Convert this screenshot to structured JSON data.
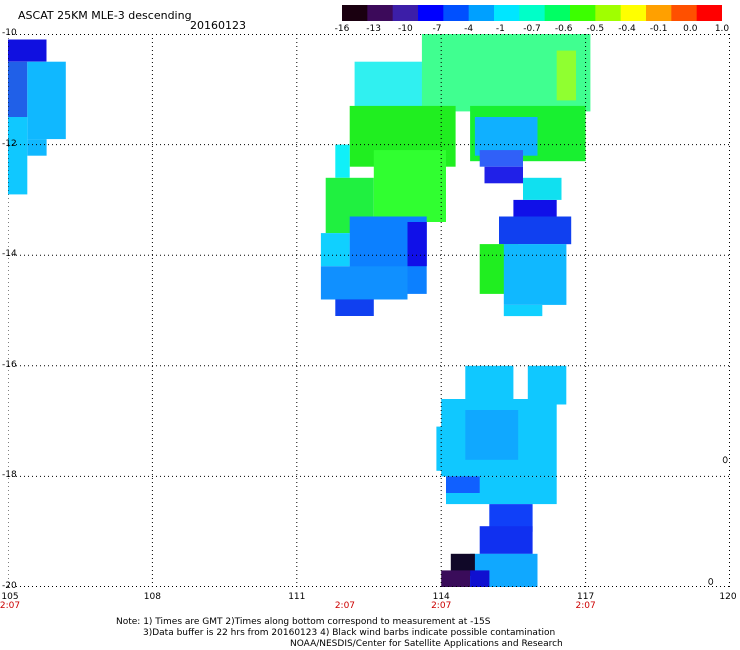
{
  "header": {
    "title": "ASCAT 25KM MLE-3 descending",
    "date": "20160123"
  },
  "colorbar": {
    "labels": [
      "-16",
      "-13",
      "-10",
      "-7",
      "-4",
      "-1",
      "-0.7",
      "-0.6",
      "-0.5",
      "-0.4",
      "-0.1",
      "0.0",
      "1.0"
    ],
    "colors": [
      "#1a0010",
      "#3c0a5a",
      "#3c1ea8",
      "#0000ff",
      "#0050ff",
      "#00a0ff",
      "#00e6ff",
      "#00ffc8",
      "#00ff64",
      "#3cff00",
      "#a0ff00",
      "#ffff00",
      "#ffa000",
      "#ff5000",
      "#ff0000"
    ]
  },
  "axes": {
    "lat_labels": [
      "-10",
      "-12",
      "-14",
      "-16",
      "-18",
      "-20"
    ],
    "lon_labels": [
      "105",
      "108",
      "111",
      "114",
      "117",
      "120"
    ],
    "time_labels": [
      "2:07",
      "2:07",
      "2:07",
      "2:07"
    ],
    "time_label_lons": [
      105,
      112,
      114,
      117
    ],
    "lat_range": [
      -20,
      -10
    ],
    "lon_range": [
      105,
      120
    ],
    "grid": true
  },
  "map_data": {
    "cells": [
      {
        "lon": 105.0,
        "lat": -10.1,
        "w": 0.8,
        "h": 0.4,
        "color": "#1010e0"
      },
      {
        "lon": 105.0,
        "lat": -10.5,
        "w": 0.4,
        "h": 1.0,
        "color": "#2060e8"
      },
      {
        "lon": 105.4,
        "lat": -10.5,
        "w": 0.8,
        "h": 1.4,
        "color": "#10b8ff"
      },
      {
        "lon": 105.0,
        "lat": -11.5,
        "w": 0.4,
        "h": 1.4,
        "color": "#10c8ff"
      },
      {
        "lon": 105.4,
        "lat": -11.9,
        "w": 0.4,
        "h": 0.3,
        "color": "#10b8ff"
      },
      {
        "lon": 112.2,
        "lat": -10.5,
        "w": 1.4,
        "h": 0.9,
        "color": "#30f0f0"
      },
      {
        "lon": 113.6,
        "lat": -10.0,
        "w": 3.5,
        "h": 1.4,
        "color": "#40ff90"
      },
      {
        "lon": 116.4,
        "lat": -10.3,
        "w": 0.4,
        "h": 0.9,
        "color": "#90ff30"
      },
      {
        "lon": 112.1,
        "lat": -11.3,
        "w": 2.2,
        "h": 1.1,
        "color": "#20ee20"
      },
      {
        "lon": 114.6,
        "lat": -11.3,
        "w": 2.4,
        "h": 1.0,
        "color": "#18f030"
      },
      {
        "lon": 114.7,
        "lat": -11.5,
        "w": 1.3,
        "h": 0.7,
        "color": "#10b0ff"
      },
      {
        "lon": 114.8,
        "lat": -12.1,
        "w": 0.9,
        "h": 0.3,
        "color": "#3060f8"
      },
      {
        "lon": 114.9,
        "lat": -12.4,
        "w": 0.8,
        "h": 0.3,
        "color": "#2020e8"
      },
      {
        "lon": 111.8,
        "lat": -12.0,
        "w": 0.3,
        "h": 0.6,
        "color": "#10f0f8"
      },
      {
        "lon": 111.6,
        "lat": -12.6,
        "w": 1.0,
        "h": 1.0,
        "color": "#20f040"
      },
      {
        "lon": 112.6,
        "lat": -12.1,
        "w": 1.5,
        "h": 1.3,
        "color": "#30ff30"
      },
      {
        "lon": 111.5,
        "lat": -13.6,
        "w": 0.6,
        "h": 0.6,
        "color": "#10d0ff"
      },
      {
        "lon": 112.1,
        "lat": -13.3,
        "w": 1.6,
        "h": 1.4,
        "color": "#0c80ff"
      },
      {
        "lon": 113.3,
        "lat": -13.4,
        "w": 0.4,
        "h": 0.8,
        "color": "#1010e8"
      },
      {
        "lon": 111.5,
        "lat": -14.2,
        "w": 1.8,
        "h": 0.6,
        "color": "#1090ff"
      },
      {
        "lon": 111.8,
        "lat": -14.8,
        "w": 0.8,
        "h": 0.3,
        "color": "#1040f0"
      },
      {
        "lon": 115.5,
        "lat": -13.0,
        "w": 0.9,
        "h": 0.3,
        "color": "#1010e8"
      },
      {
        "lon": 115.2,
        "lat": -13.3,
        "w": 1.5,
        "h": 0.5,
        "color": "#1040f0"
      },
      {
        "lon": 114.8,
        "lat": -13.8,
        "w": 0.8,
        "h": 0.9,
        "color": "#20ee20"
      },
      {
        "lon": 115.3,
        "lat": -13.8,
        "w": 1.3,
        "h": 1.1,
        "color": "#10b8ff"
      },
      {
        "lon": 115.7,
        "lat": -12.6,
        "w": 0.8,
        "h": 0.4,
        "color": "#10e0f0"
      },
      {
        "lon": 115.3,
        "lat": -14.9,
        "w": 0.8,
        "h": 0.2,
        "color": "#10d0ff"
      },
      {
        "lon": 114.5,
        "lat": -16.0,
        "w": 1.0,
        "h": 0.6,
        "color": "#10c8ff"
      },
      {
        "lon": 115.8,
        "lat": -16.0,
        "w": 0.8,
        "h": 0.7,
        "color": "#10c8ff"
      },
      {
        "lon": 114.0,
        "lat": -16.6,
        "w": 2.4,
        "h": 1.4,
        "color": "#10c8ff"
      },
      {
        "lon": 114.5,
        "lat": -16.8,
        "w": 1.1,
        "h": 0.9,
        "color": "#10a8ff"
      },
      {
        "lon": 113.9,
        "lat": -17.1,
        "w": 0.2,
        "h": 0.8,
        "color": "#10c8ff"
      },
      {
        "lon": 114.1,
        "lat": -18.0,
        "w": 2.3,
        "h": 0.5,
        "color": "#10c8ff"
      },
      {
        "lon": 114.1,
        "lat": -18.0,
        "w": 0.7,
        "h": 0.3,
        "color": "#1060ff"
      },
      {
        "lon": 115.0,
        "lat": -18.5,
        "w": 0.9,
        "h": 0.5,
        "color": "#1040f8"
      },
      {
        "lon": 114.8,
        "lat": -18.9,
        "w": 1.1,
        "h": 0.5,
        "color": "#1030f0"
      },
      {
        "lon": 114.6,
        "lat": -19.4,
        "w": 1.4,
        "h": 0.6,
        "color": "#10a8ff"
      },
      {
        "lon": 114.2,
        "lat": -19.4,
        "w": 0.5,
        "h": 0.4,
        "color": "#100828"
      },
      {
        "lon": 114.0,
        "lat": -19.7,
        "w": 0.6,
        "h": 0.3,
        "color": "#3a0c5a"
      },
      {
        "lon": 114.6,
        "lat": -19.7,
        "w": 0.4,
        "h": 0.3,
        "color": "#1010d0"
      }
    ]
  },
  "footer": {
    "note_line1": "Note: 1) Times are GMT 2)Times along bottom correspond to measurement at -15S",
    "note_line2": "3)Data buffer is 22 hrs from 20160123 4) Black wind barbs indicate possible contamination",
    "note_line3": "NOAA/NESDIS/Center for Satellite Applications and Research"
  }
}
